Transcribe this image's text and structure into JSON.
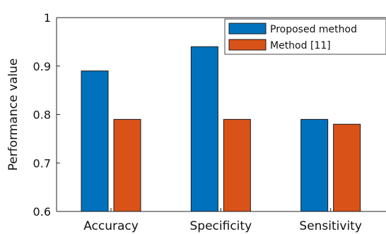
{
  "chart_data": {
    "type": "bar",
    "categories": [
      "Accuracy",
      "Specificity",
      "Sensitivity"
    ],
    "series": [
      {
        "name": "Proposed method",
        "color": "#0072BD",
        "values": [
          0.89,
          0.94,
          0.79
        ]
      },
      {
        "name": "Method [11]",
        "color": "#D95319",
        "values": [
          0.79,
          0.79,
          0.78
        ]
      }
    ],
    "ylabel": "Performance value",
    "xlabel": "",
    "ylim": [
      0.6,
      1.0
    ],
    "yticks": [
      0.6,
      0.7,
      0.8,
      0.9,
      1
    ],
    "ytick_labels": [
      "0.6",
      "0.7",
      "0.8",
      "0.9",
      "1"
    ],
    "grid": false,
    "legend_position": "top-right"
  }
}
